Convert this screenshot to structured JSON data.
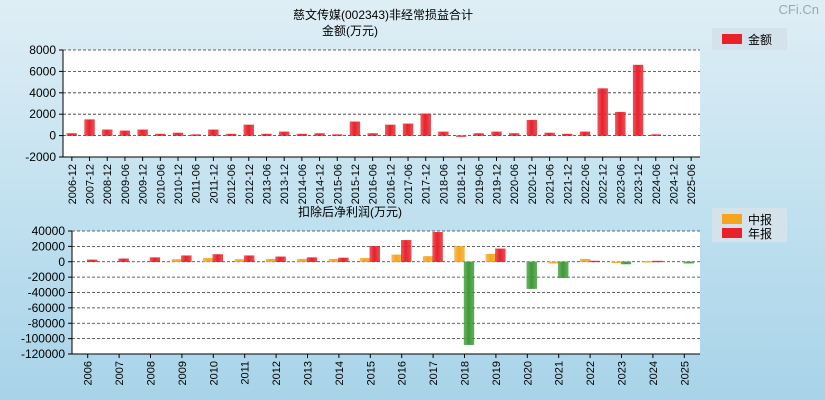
{
  "watermark": "CFi.Cn",
  "colors": {
    "series_red": "#e8212a",
    "series_orange": "#f5a51e",
    "series_green": "#3d9a35",
    "legend_bg": "#d4e2ec"
  },
  "chart_data": [
    {
      "type": "bar",
      "title": "慈文传媒(002343)非经常损益合计",
      "subtitle": "金额(万元)",
      "legend_position": "top-right",
      "grid": true,
      "ylim": [
        -2000,
        8000
      ],
      "yticks": [
        -2000,
        0,
        2000,
        4000,
        6000,
        8000
      ],
      "categories": [
        "2006-12",
        "2007-12",
        "2008-12",
        "2009-06",
        "2009-12",
        "2010-06",
        "2010-12",
        "2011-06",
        "2011-12",
        "2012-06",
        "2012-12",
        "2013-06",
        "2013-12",
        "2014-06",
        "2014-12",
        "2015-06",
        "2015-12",
        "2016-06",
        "2016-12",
        "2017-06",
        "2017-12",
        "2018-06",
        "2018-12",
        "2019-06",
        "2019-12",
        "2020-06",
        "2020-12",
        "2021-06",
        "2021-12",
        "2022-06",
        "2022-12",
        "2023-06",
        "2023-12",
        "2024-06",
        "2024-12",
        "2025-06"
      ],
      "series": [
        {
          "name": "金额",
          "color": "#e8212a",
          "values": [
            200,
            1500,
            550,
            450,
            550,
            150,
            250,
            100,
            550,
            150,
            1000,
            150,
            350,
            150,
            200,
            100,
            1300,
            200,
            1000,
            1100,
            2050,
            350,
            -50,
            200,
            350,
            200,
            1450,
            250,
            150,
            350,
            4400,
            2200,
            6600,
            100,
            0,
            0
          ]
        }
      ]
    },
    {
      "type": "bar",
      "title": "扣除后净利润(万元)",
      "legend_position": "top-right",
      "grid": true,
      "ylim": [
        -120000,
        40000
      ],
      "yticks": [
        -120000,
        -100000,
        -80000,
        -60000,
        -40000,
        -20000,
        0,
        20000,
        40000
      ],
      "categories": [
        "2006",
        "2007",
        "2008",
        "2009",
        "2010",
        "2011",
        "2012",
        "2013",
        "2014",
        "2015",
        "2016",
        "2017",
        "2018",
        "2019",
        "2020",
        "2021",
        "2022",
        "2023",
        "2024",
        "2025"
      ],
      "series": [
        {
          "name": "中报",
          "color": "#f5a51e",
          "values": [
            0,
            0,
            0,
            3000,
            4500,
            3000,
            3500,
            3500,
            3500,
            4500,
            9000,
            7000,
            20000,
            10000,
            0,
            -2000,
            3500,
            -1000,
            500,
            0
          ]
        },
        {
          "name": "年报",
          "color": "#e8212a",
          "values": [
            2500,
            4000,
            5500,
            8000,
            9500,
            8000,
            6500,
            5500,
            5000,
            20000,
            28000,
            38500,
            -108000,
            17000,
            -35000,
            -21000,
            1000,
            -3000,
            1000,
            -2000
          ]
        }
      ],
      "negative_color": "#3d9a35"
    }
  ]
}
